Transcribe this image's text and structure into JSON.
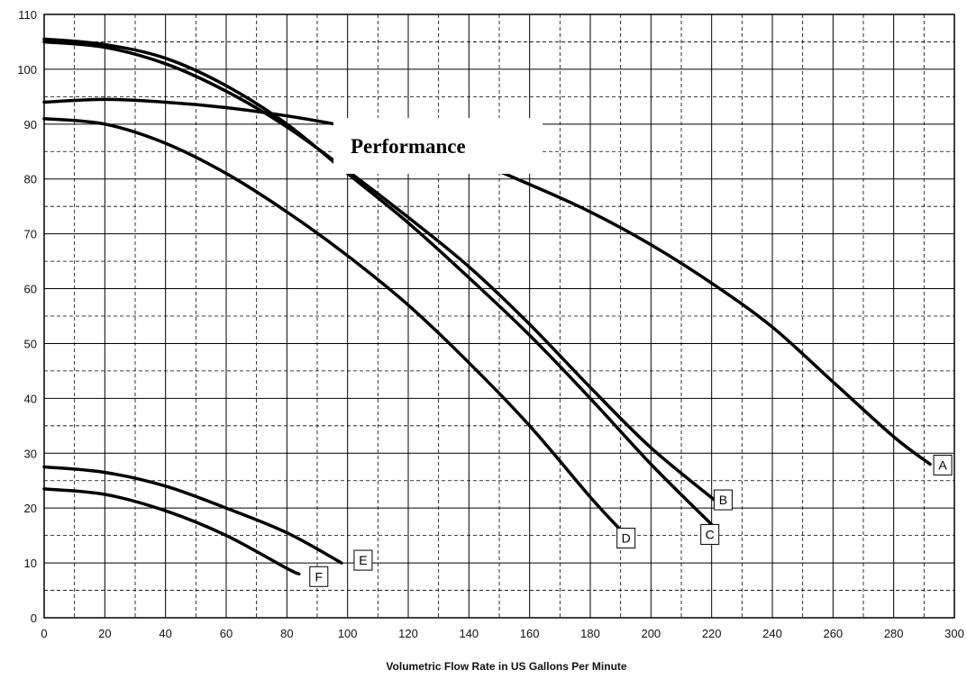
{
  "chart_data": {
    "type": "line",
    "title": "Performance",
    "xlabel": "Volumetric Flow Rate in US Gallons Per Minute",
    "ylabel": "",
    "xlim": [
      0,
      300
    ],
    "ylim": [
      0,
      110
    ],
    "x_ticks": [
      "0",
      "20",
      "40",
      "60",
      "80",
      "100",
      "120",
      "140",
      "160",
      "180",
      "200",
      "220",
      "240",
      "260",
      "280",
      "300"
    ],
    "y_ticks": [
      "0",
      "10",
      "20",
      "30",
      "40",
      "50",
      "60",
      "70",
      "80",
      "90",
      "100",
      "110"
    ],
    "grid": true,
    "series": [
      {
        "name": "A",
        "x": [
          0,
          20,
          40,
          60,
          80,
          100,
          120,
          140,
          160,
          180,
          200,
          220,
          240,
          260,
          280,
          292
        ],
        "y": [
          94,
          94.5,
          94,
          93,
          91.5,
          89.5,
          86.5,
          83.5,
          79,
          74,
          68,
          61,
          53,
          43,
          33,
          28
        ]
      },
      {
        "name": "B",
        "x": [
          0,
          20,
          40,
          60,
          80,
          100,
          120,
          140,
          160,
          180,
          200,
          222
        ],
        "y": [
          105,
          104,
          101,
          96,
          89.5,
          81.5,
          73,
          64,
          53.5,
          42,
          31,
          21
        ]
      },
      {
        "name": "C",
        "x": [
          0,
          20,
          40,
          60,
          80,
          100,
          120,
          140,
          160,
          180,
          200,
          220
        ],
        "y": [
          105.5,
          104.5,
          102,
          97,
          90,
          81,
          72,
          62,
          51.5,
          40,
          28,
          17
        ]
      },
      {
        "name": "D",
        "x": [
          0,
          20,
          40,
          60,
          80,
          100,
          120,
          140,
          160,
          180,
          190
        ],
        "y": [
          91,
          90,
          86.5,
          81,
          74,
          66,
          57,
          46.5,
          35,
          22,
          16
        ]
      },
      {
        "name": "E",
        "x": [
          0,
          20,
          40,
          60,
          80,
          98
        ],
        "y": [
          27.5,
          26.5,
          24,
          20,
          15.5,
          10
        ]
      },
      {
        "name": "F",
        "x": [
          0,
          20,
          40,
          60,
          80,
          84
        ],
        "y": [
          23.5,
          22.5,
          19.5,
          15,
          9,
          8
        ]
      }
    ]
  }
}
